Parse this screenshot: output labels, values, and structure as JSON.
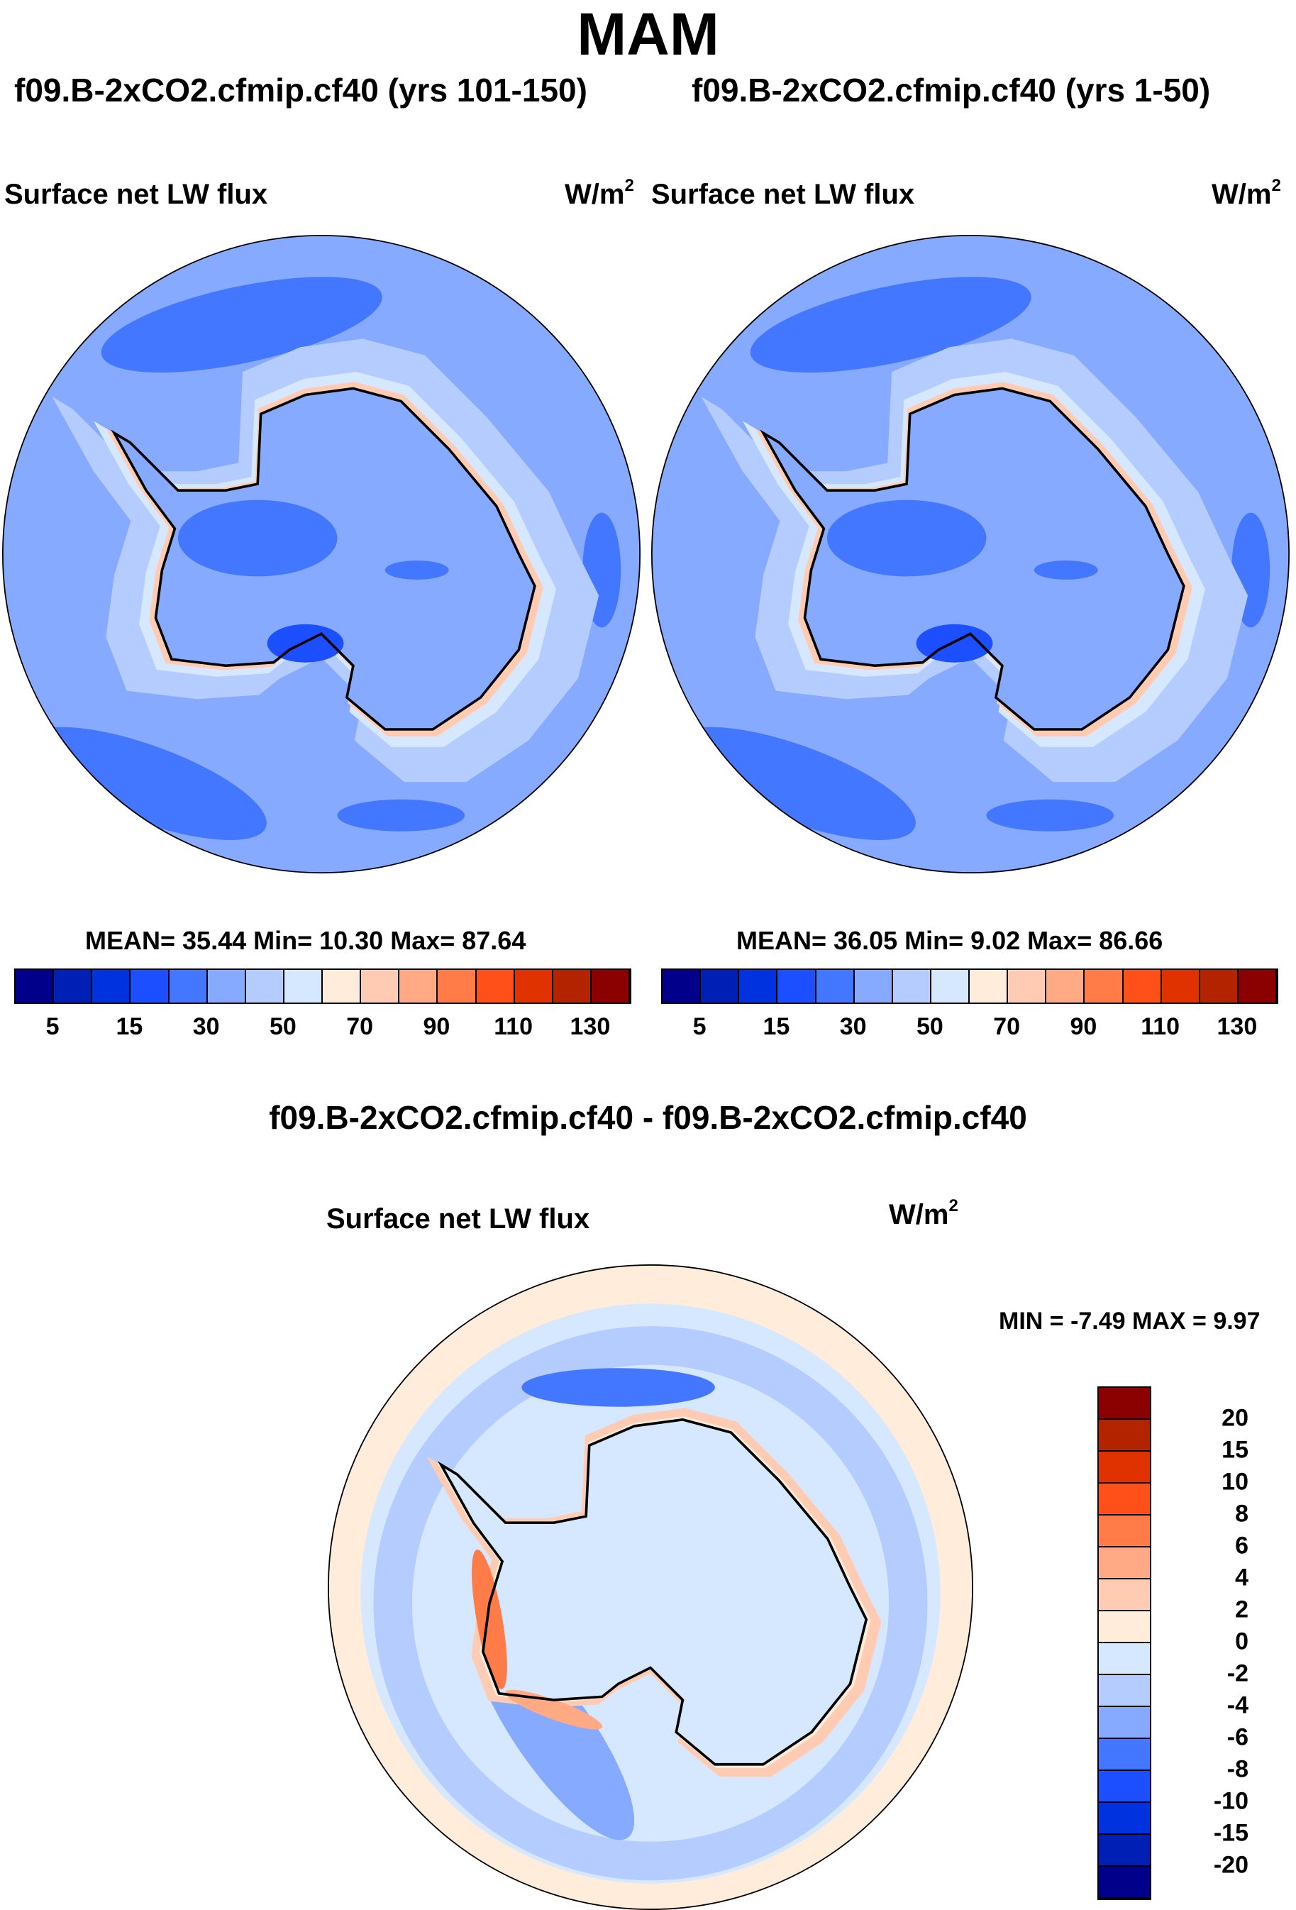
{
  "title": "MAM",
  "panels": [
    {
      "subtitle": "f09.B-2xCO2.cfmip.cf40 (yrs 101-150)",
      "left_label": "Surface net LW flux",
      "units": "W/m",
      "units_sup": "2",
      "stats": "MEAN=  35.44  Min=  10.30  Max=  87.64"
    },
    {
      "subtitle": "f09.B-2xCO2.cfmip.cf40 (yrs 1-50)",
      "left_label": "Surface net LW flux",
      "units": "W/m",
      "units_sup": "2",
      "stats": "MEAN=  36.05  Min=   9.02  Max=  86.66"
    }
  ],
  "diff": {
    "title": "f09.B-2xCO2.cfmip.cf40 - f09.B-2xCO2.cfmip.cf40",
    "left_label": "Surface net LW flux",
    "units": "W/m",
    "units_sup": "2",
    "stats": "MIN =  -7.49 MAX =   9.97"
  },
  "chart_data": [
    {
      "type": "heatmap",
      "projection": "south-polar-stereographic",
      "title": "f09.B-2xCO2.cfmip.cf40 (yrs 101-150)",
      "variable": "Surface net LW flux",
      "units": "W/m2",
      "mean": 35.44,
      "min": 10.3,
      "max": 87.64,
      "colorbar": {
        "tick_labels": [
          "5",
          "15",
          "30",
          "50",
          "70",
          "90",
          "110",
          "130"
        ],
        "colors": [
          "#00008B",
          "#001FB5",
          "#0032E0",
          "#1C4FFF",
          "#4477FF",
          "#85AAFF",
          "#B4CCFF",
          "#D6E8FF",
          "#FFECDA",
          "#FFCCB3",
          "#FFAA85",
          "#FF7B47",
          "#FF5019",
          "#E03200",
          "#B42300",
          "#8B0000"
        ]
      }
    },
    {
      "type": "heatmap",
      "projection": "south-polar-stereographic",
      "title": "f09.B-2xCO2.cfmip.cf40 (yrs 1-50)",
      "variable": "Surface net LW flux",
      "units": "W/m2",
      "mean": 36.05,
      "min": 9.02,
      "max": 86.66,
      "colorbar": {
        "tick_labels": [
          "5",
          "15",
          "30",
          "50",
          "70",
          "90",
          "110",
          "130"
        ],
        "colors": [
          "#00008B",
          "#001FB5",
          "#0032E0",
          "#1C4FFF",
          "#4477FF",
          "#85AAFF",
          "#B4CCFF",
          "#D6E8FF",
          "#FFECDA",
          "#FFCCB3",
          "#FFAA85",
          "#FF7B47",
          "#FF5019",
          "#E03200",
          "#B42300",
          "#8B0000"
        ]
      }
    },
    {
      "type": "heatmap",
      "projection": "south-polar-stereographic",
      "title": "f09.B-2xCO2.cfmip.cf40 - f09.B-2xCO2.cfmip.cf40",
      "variable": "Surface net LW flux",
      "units": "W/m2",
      "min": -7.49,
      "max": 9.97,
      "colorbar": {
        "tick_labels": [
          "20",
          "15",
          "10",
          "8",
          "6",
          "4",
          "2",
          "0",
          "-2",
          "-4",
          "-6",
          "-8",
          "-10",
          "-15",
          "-20"
        ],
        "colors": [
          "#8B0000",
          "#B42300",
          "#E03200",
          "#FF5019",
          "#FF7B47",
          "#FFAA85",
          "#FFCCB3",
          "#FFECDA",
          "#D6E8FF",
          "#B4CCFF",
          "#85AAFF",
          "#4477FF",
          "#1C4FFF",
          "#0032E0",
          "#001FB5",
          "#00008B"
        ]
      }
    }
  ]
}
